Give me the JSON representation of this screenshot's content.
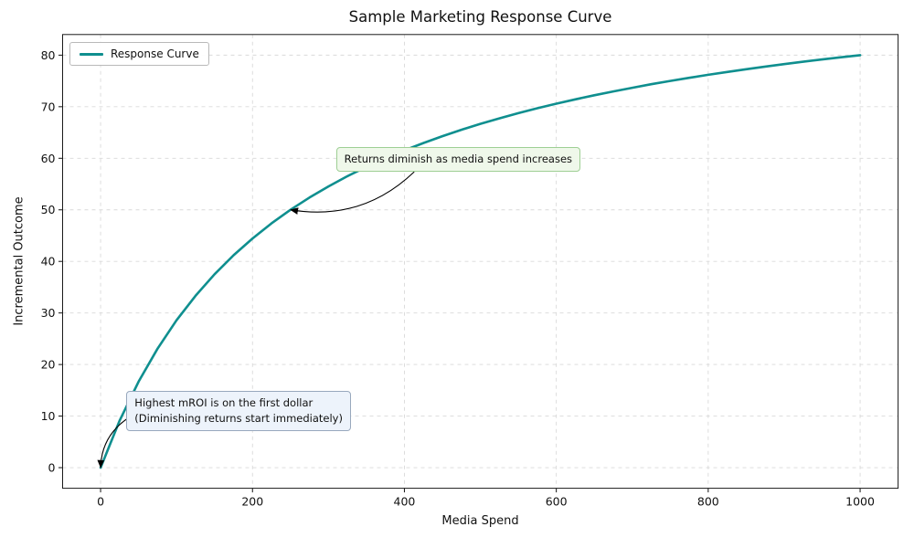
{
  "chart_data": {
    "type": "line",
    "title": "Sample Marketing Response Curve",
    "xlabel": "Media Spend",
    "ylabel": "Incremental Outcome",
    "xlim": [
      -50,
      1050
    ],
    "ylim": [
      -4,
      84
    ],
    "x_ticks": [
      0,
      200,
      400,
      600,
      800,
      1000
    ],
    "y_ticks": [
      0,
      10,
      20,
      30,
      40,
      50,
      60,
      70,
      80
    ],
    "grid": true,
    "grid_style": {
      "color": "#d9d9d9",
      "dash": "4 4"
    },
    "legend": {
      "position": "upper left",
      "entries": [
        {
          "label": "Response Curve",
          "color": "#0f8f8f"
        }
      ]
    },
    "series": [
      {
        "name": "Response Curve",
        "color": "#0f8f8f",
        "line_width": 2.6,
        "x": [
          0,
          25,
          50,
          75,
          100,
          125,
          150,
          175,
          200,
          225,
          250,
          275,
          300,
          325,
          350,
          375,
          400,
          425,
          450,
          475,
          500,
          525,
          550,
          575,
          600,
          625,
          650,
          675,
          700,
          725,
          750,
          775,
          800,
          825,
          850,
          875,
          900,
          925,
          950,
          975,
          1000
        ],
        "y": [
          0,
          9.09,
          16.67,
          23.08,
          28.57,
          33.33,
          37.5,
          41.18,
          44.44,
          47.37,
          50,
          52.38,
          54.55,
          56.52,
          58.33,
          60,
          61.54,
          62.96,
          64.29,
          65.52,
          66.67,
          67.74,
          68.75,
          69.7,
          70.59,
          71.43,
          72.22,
          72.97,
          73.68,
          74.36,
          75,
          75.61,
          76.19,
          76.74,
          77.27,
          77.78,
          78.26,
          78.72,
          79.17,
          79.59,
          80
        ]
      }
    ],
    "annotations": [
      {
        "text": "Returns diminish as media spend increases",
        "xy": [
          250,
          50
        ],
        "text_xy": [
          310,
          62.2
        ],
        "bg": "#eff8ea",
        "border": "#9ecf94",
        "arrow": {
          "start_anchor": [
            0.32,
            1.0
          ],
          "bend": 0.25
        }
      },
      {
        "text": "Highest mROI is on the first dollar\n(Diminishing returns start immediately)",
        "xy": [
          0,
          0
        ],
        "text_xy": [
          34,
          14.9
        ],
        "bg": "#edf3fb",
        "border": "#98a8bd",
        "arrow": {
          "start_anchor": [
            0.0,
            0.7
          ],
          "bend": -0.25
        }
      }
    ]
  }
}
